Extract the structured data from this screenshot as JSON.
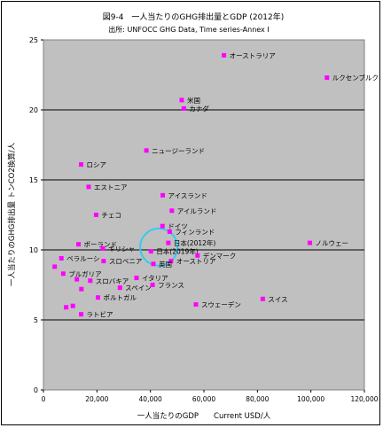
{
  "chart_data": {
    "type": "scatter",
    "title": "図9-4　一人当たりのGHG排出量とGDP (2012年)",
    "subtitle": "出所: UNFOCC GHG Data, Time series-Annex I",
    "xlabel": "一人当たりのGDP　　Current USD/人",
    "ylabel": "一人当たりのGHG排出量 トンCO2換算/人",
    "xlim": [
      0,
      120000
    ],
    "ylim": [
      0,
      25
    ],
    "xticks": [
      0,
      20000,
      40000,
      60000,
      80000,
      100000,
      120000
    ],
    "xtick_labels": [
      "0",
      "20,000",
      "40,000",
      "60,000",
      "80,000",
      "100,000",
      "120,000"
    ],
    "yticks": [
      0,
      5,
      10,
      15,
      20,
      25
    ],
    "ytick_labels": [
      "0",
      "5",
      "10",
      "15",
      "20",
      "25"
    ],
    "grid": "horizontal at 5, 10, 15, 20",
    "marker_color": "#ff00ff",
    "plot_background": "#c0c0c0",
    "highlight_color": "#33ccee",
    "points": [
      {
        "label": "オーストラリア",
        "x": 67500,
        "y": 23.9
      },
      {
        "label": "ルクセンブルク",
        "x": 106000,
        "y": 22.3
      },
      {
        "label": "米国",
        "x": 51700,
        "y": 20.7
      },
      {
        "label": "カナダ",
        "x": 52500,
        "y": 20.1
      },
      {
        "label": "ニュージーランド",
        "x": 38500,
        "y": 17.1
      },
      {
        "label": "ロシア",
        "x": 14100,
        "y": 16.1
      },
      {
        "label": "エストニア",
        "x": 16900,
        "y": 14.5
      },
      {
        "label": "アイスランド",
        "x": 44600,
        "y": 13.9
      },
      {
        "label": "アイルランド",
        "x": 48000,
        "y": 12.8
      },
      {
        "label": "チェコ",
        "x": 19700,
        "y": 12.5
      },
      {
        "label": "ドイツ",
        "x": 44500,
        "y": 11.7
      },
      {
        "label": "フィンランド",
        "x": 47200,
        "y": 11.3
      },
      {
        "label": "ノルウェー",
        "x": 99600,
        "y": 10.5
      },
      {
        "label": "日本(2012年)",
        "x": 46700,
        "y": 10.5
      },
      {
        "label": "ポーランド",
        "x": 13100,
        "y": 10.4
      },
      {
        "label": "ギリシャ",
        "x": 22200,
        "y": 10.1
      },
      {
        "label": "日本(2019年)",
        "x": 40200,
        "y": 9.9
      },
      {
        "label": "デンマーク",
        "x": 57600,
        "y": 9.6
      },
      {
        "label": "ベラルーシ",
        "x": 6700,
        "y": 9.4
      },
      {
        "label": "スロベニア",
        "x": 22500,
        "y": 9.2
      },
      {
        "label": "オーストリア",
        "x": 47700,
        "y": 9.2
      },
      {
        "label": "英国",
        "x": 41100,
        "y": 9.0
      },
      {
        "label": "",
        "x": 4200,
        "y": 8.8
      },
      {
        "label": "ブルガリア",
        "x": 7400,
        "y": 8.3
      },
      {
        "label": "イタリア",
        "x": 34800,
        "y": 8.0
      },
      {
        "label": "スロバキア",
        "x": 17500,
        "y": 7.8
      },
      {
        "label": "",
        "x": 12500,
        "y": 7.9
      },
      {
        "label": "フランス",
        "x": 40800,
        "y": 7.5
      },
      {
        "label": "スペイン",
        "x": 28600,
        "y": 7.3
      },
      {
        "label": "",
        "x": 14200,
        "y": 7.2
      },
      {
        "label": "ポルトガル",
        "x": 20400,
        "y": 6.6
      },
      {
        "label": "スウェーデン",
        "x": 57000,
        "y": 6.1
      },
      {
        "label": "スイス",
        "x": 82000,
        "y": 6.5
      },
      {
        "label": "",
        "x": 8500,
        "y": 5.9
      },
      {
        "label": "",
        "x": 11000,
        "y": 6.0
      },
      {
        "label": "ラトビア",
        "x": 14100,
        "y": 5.4
      }
    ]
  }
}
